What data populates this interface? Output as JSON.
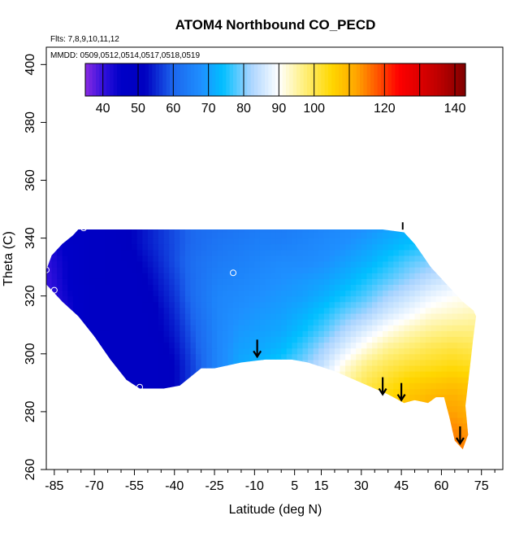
{
  "chart_data": {
    "type": "heatmap",
    "title": "ATOM4 Northbound CO_PECD",
    "flights_label": "Flts: 7,8,9,10,11,12",
    "dates_label": "MMDD: 0509,0512,0514,0517,0518,0519",
    "xlabel": "Latitude (deg N)",
    "ylabel": "Theta (C)",
    "xlim": [
      -88,
      83
    ],
    "ylim": [
      260,
      406
    ],
    "x_ticks": [
      -85,
      -70,
      -55,
      -40,
      -25,
      -10,
      5,
      15,
      30,
      45,
      60,
      75
    ],
    "x_minor_ticks": [
      -80,
      -75,
      -65,
      -60,
      -50,
      -45,
      -35,
      -30,
      -20,
      -15,
      -5,
      0,
      10,
      20,
      25,
      35,
      40,
      50,
      55,
      65,
      70,
      80
    ],
    "y_ticks": [
      260,
      280,
      300,
      320,
      340,
      360,
      380,
      400
    ],
    "colorbar": {
      "range": [
        35,
        143
      ],
      "tick_values": [
        40,
        50,
        60,
        70,
        80,
        90,
        100,
        120,
        140
      ],
      "tick_labels": [
        "40",
        "50",
        "60",
        "70",
        "80",
        "90",
        "100",
        "120",
        "140"
      ],
      "division_lines": [
        40,
        50,
        60,
        70,
        80,
        90,
        100,
        110,
        120,
        130,
        140
      ],
      "stops": [
        {
          "v": 35,
          "color": "#8a2be2"
        },
        {
          "v": 40,
          "color": "#3311dd"
        },
        {
          "v": 45,
          "color": "#0000c8"
        },
        {
          "v": 52,
          "color": "#0000c0"
        },
        {
          "v": 60,
          "color": "#1c66ee"
        },
        {
          "v": 68,
          "color": "#1e90ff"
        },
        {
          "v": 74,
          "color": "#00bfff"
        },
        {
          "v": 82,
          "color": "#aad4ff"
        },
        {
          "v": 90,
          "color": "#ffffff"
        },
        {
          "v": 97,
          "color": "#fff080"
        },
        {
          "v": 105,
          "color": "#ffd700"
        },
        {
          "v": 112,
          "color": "#ffa500"
        },
        {
          "v": 118,
          "color": "#ff5500"
        },
        {
          "v": 124,
          "color": "#ff0000"
        },
        {
          "v": 135,
          "color": "#c00000"
        },
        {
          "v": 143,
          "color": "#800000"
        }
      ]
    },
    "field": {
      "lat_grid": [
        -87,
        -80,
        -72,
        -64,
        -56,
        -48,
        -40,
        -32,
        -24,
        -16,
        -8,
        0,
        8,
        16,
        24,
        32,
        40,
        48,
        56,
        64,
        72,
        80
      ],
      "theta_grid": [
        266,
        272,
        278,
        284,
        290,
        296,
        302,
        308,
        314,
        320,
        326,
        332,
        338,
        344
      ],
      "values": [
        [
          36,
          40,
          47,
          50,
          50,
          50,
          52,
          58,
          66,
          72,
          76,
          80,
          84,
          90,
          96,
          102,
          106,
          110,
          114,
          116,
          114,
          112
        ],
        [
          36,
          40,
          47,
          50,
          50,
          50,
          52,
          58,
          66,
          72,
          76,
          80,
          84,
          90,
          96,
          102,
          106,
          110,
          113,
          115,
          113,
          111
        ],
        [
          36,
          40,
          47,
          50,
          50,
          50,
          52,
          58,
          66,
          72,
          76,
          80,
          84,
          90,
          96,
          102,
          106,
          110,
          112,
          113,
          111,
          110
        ],
        [
          36,
          40,
          47,
          50,
          50,
          50,
          52,
          58,
          66,
          72,
          75,
          79,
          83,
          89,
          96,
          101,
          105,
          108,
          110,
          111,
          109,
          108
        ],
        [
          36,
          40,
          47,
          50,
          50,
          50,
          52,
          58,
          66,
          72,
          75,
          78,
          82,
          88,
          95,
          100,
          103,
          106,
          107,
          108,
          107,
          106
        ],
        [
          36,
          40,
          47,
          50,
          50,
          50,
          52,
          58,
          66,
          71,
          73,
          76,
          80,
          85,
          92,
          97,
          100,
          102,
          103,
          104,
          103,
          102
        ],
        [
          37,
          41,
          47,
          50,
          50,
          50,
          53,
          59,
          66,
          70,
          71,
          73,
          77,
          82,
          87,
          92,
          96,
          98,
          100,
          101,
          100,
          100
        ],
        [
          38,
          42,
          48,
          50,
          50,
          51,
          54,
          60,
          66,
          69,
          70,
          71,
          74,
          78,
          83,
          87,
          91,
          94,
          96,
          97,
          97,
          97
        ],
        [
          39,
          43,
          48,
          50,
          50,
          51,
          55,
          61,
          66,
          68,
          69,
          70,
          72,
          75,
          79,
          82,
          86,
          89,
          92,
          93,
          94,
          94
        ],
        [
          40,
          44,
          48,
          50,
          50,
          52,
          56,
          62,
          66,
          67,
          68,
          69,
          70,
          72,
          75,
          78,
          82,
          85,
          88,
          90,
          91,
          91
        ],
        [
          40,
          45,
          49,
          50,
          50,
          53,
          57,
          62,
          65,
          66,
          67,
          68,
          69,
          70,
          72,
          75,
          78,
          81,
          84,
          86,
          88,
          88
        ],
        [
          41,
          45,
          49,
          50,
          51,
          54,
          58,
          62,
          64,
          65,
          66,
          67,
          67,
          68,
          70,
          72,
          75,
          78,
          80,
          82,
          84,
          84
        ],
        [
          42,
          46,
          49,
          50,
          52,
          55,
          58,
          61,
          63,
          64,
          65,
          65,
          66,
          67,
          68,
          70,
          72,
          74,
          76,
          78,
          80,
          80
        ],
        [
          43,
          47,
          49,
          50,
          52,
          55,
          58,
          61,
          62,
          63,
          64,
          64,
          65,
          66,
          67,
          68,
          70,
          72,
          74,
          76,
          78,
          78
        ]
      ],
      "domain_outline": [
        [
          -88,
          329
        ],
        [
          -86,
          334
        ],
        [
          -82,
          338
        ],
        [
          -78,
          341
        ],
        [
          -76,
          343
        ],
        [
          -60,
          343
        ],
        [
          -40,
          343
        ],
        [
          -20,
          343
        ],
        [
          0,
          343
        ],
        [
          20,
          343
        ],
        [
          38,
          343
        ],
        [
          46,
          342
        ],
        [
          50,
          338
        ],
        [
          53,
          334
        ],
        [
          56,
          330
        ],
        [
          60,
          326
        ],
        [
          64,
          322
        ],
        [
          68,
          318
        ],
        [
          72,
          315
        ],
        [
          73,
          313
        ],
        [
          72,
          306
        ],
        [
          71,
          298
        ],
        [
          70,
          290
        ],
        [
          69,
          282
        ],
        [
          70,
          272
        ],
        [
          68,
          267
        ],
        [
          65,
          270
        ],
        [
          63,
          278
        ],
        [
          61,
          285
        ],
        [
          58,
          285
        ],
        [
          55,
          283
        ],
        [
          50,
          284
        ],
        [
          46,
          283
        ],
        [
          40,
          286
        ],
        [
          30,
          290
        ],
        [
          20,
          294
        ],
        [
          10,
          297
        ],
        [
          4,
          298
        ],
        [
          -6,
          298
        ],
        [
          -15,
          297
        ],
        [
          -25,
          295
        ],
        [
          -30,
          295
        ],
        [
          -38,
          289
        ],
        [
          -44,
          288
        ],
        [
          -53,
          288
        ],
        [
          -58,
          291
        ],
        [
          -64,
          298
        ],
        [
          -70,
          306
        ],
        [
          -76,
          313
        ],
        [
          -82,
          318
        ],
        [
          -86,
          322
        ],
        [
          -88,
          324
        ]
      ]
    },
    "markers": {
      "circles": [
        {
          "lat": -74,
          "theta": 343.5
        },
        {
          "lat": -88,
          "theta": 329
        },
        {
          "lat": -85,
          "theta": 322
        },
        {
          "lat": -18,
          "theta": 328
        },
        {
          "lat": -53,
          "theta": 288.5
        }
      ],
      "arrows": [
        {
          "lat": -9,
          "theta": 299
        },
        {
          "lat": 38,
          "theta": 286
        },
        {
          "lat": 45,
          "theta": 284
        },
        {
          "lat": 67,
          "theta": 269
        }
      ],
      "tick_marks": [
        {
          "lat": 45.5,
          "theta": 343.5
        }
      ]
    }
  }
}
